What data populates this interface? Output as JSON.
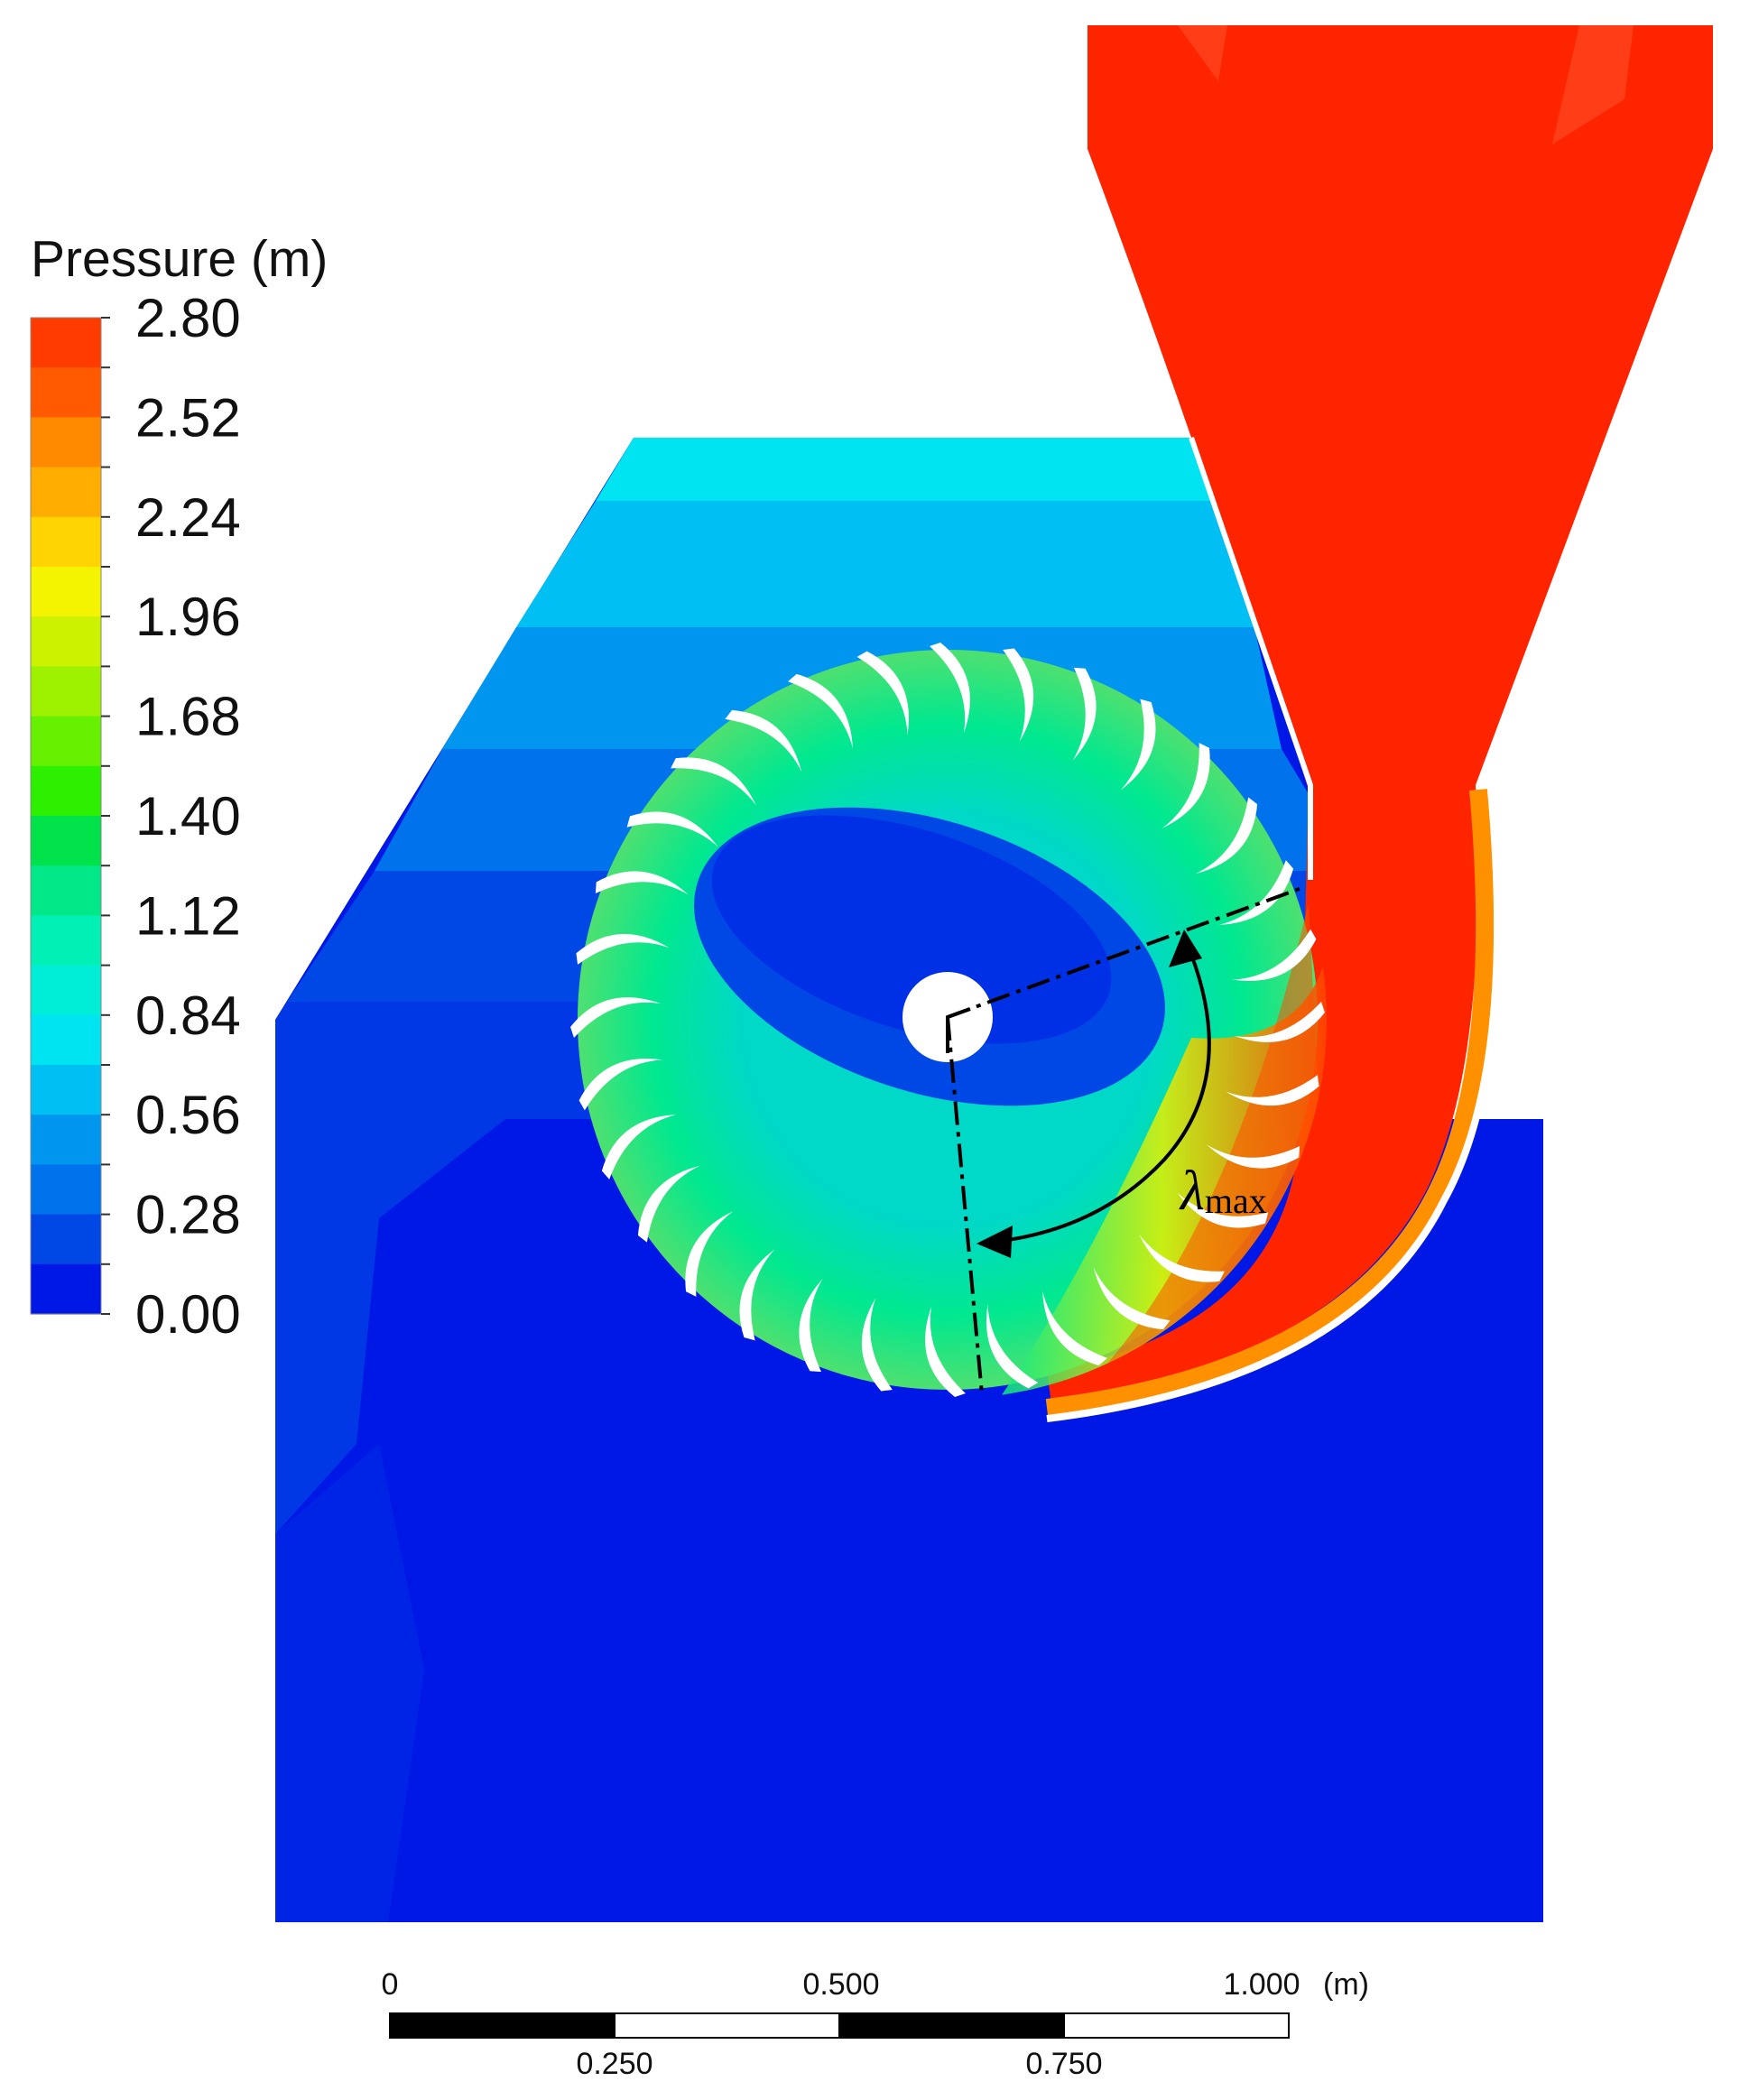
{
  "legend": {
    "title": "Pressure (m)",
    "unit": "m",
    "range": [
      0.0,
      2.8
    ],
    "tick_labels": [
      "2.80",
      "2.52",
      "2.24",
      "1.96",
      "1.68",
      "1.40",
      "1.12",
      "0.84",
      "0.56",
      "0.28",
      "0.00"
    ],
    "band_colors": [
      "#ff3b00",
      "#ff5a00",
      "#ff8a00",
      "#ffad00",
      "#ffd400",
      "#f4f400",
      "#ccf200",
      "#9ef200",
      "#67f000",
      "#2cf000",
      "#00e14a",
      "#00e888",
      "#00f0b5",
      "#00eed8",
      "#00e4f2",
      "#00bff2",
      "#0096f0",
      "#0072ec",
      "#0048e6",
      "#0018e6"
    ]
  },
  "annotation": {
    "angle_symbol": "λ",
    "angle_subscript": "max"
  },
  "scale_bar": {
    "top_labels": [
      "0",
      "0.500",
      "1.000"
    ],
    "unit_label": "(m)",
    "bottom_labels": [
      "0.250",
      "0.750"
    ]
  },
  "colors": {
    "high_pressure": "#ff2400",
    "low_pressure": "#0018e6",
    "mid_pressure": "#00e890",
    "blade": "#ffffff"
  },
  "runner": {
    "blade_count": 32
  }
}
